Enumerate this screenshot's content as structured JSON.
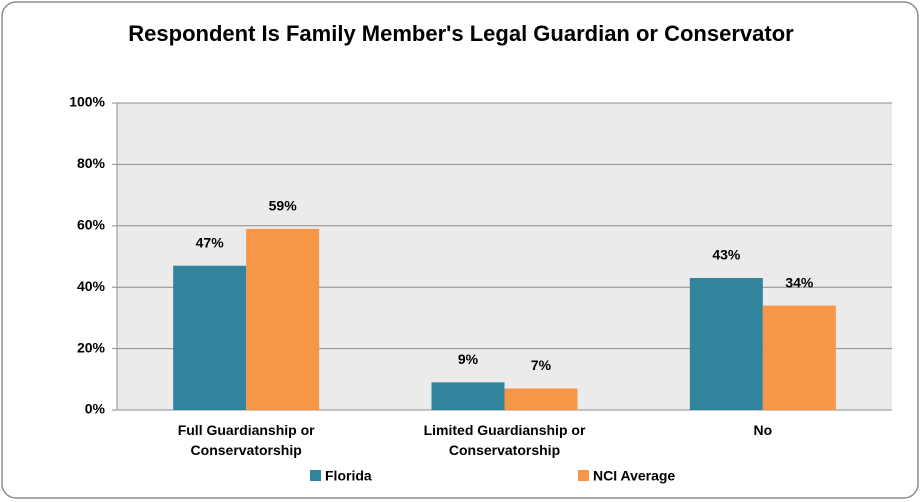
{
  "chart_data": {
    "type": "bar",
    "title": "Respondent Is Family Member's Legal Guardian or Conservator",
    "categories": [
      "Full Guardianship or Conservatorship",
      "Limited Guardianship or Conservatorship",
      "No"
    ],
    "series": [
      {
        "name": "Florida",
        "color": "#31849b",
        "values": [
          47,
          9,
          43
        ],
        "value_labels": [
          "47%",
          "9%",
          "43%"
        ]
      },
      {
        "name": "NCI Average",
        "color": "#f79646",
        "values": [
          59,
          7,
          34
        ],
        "value_labels": [
          "59%",
          "7%",
          "34%"
        ]
      }
    ],
    "ylim": [
      0,
      100
    ],
    "yticks": [
      {
        "value": 0,
        "label": "0%"
      },
      {
        "value": 20,
        "label": "20%"
      },
      {
        "value": 40,
        "label": "40%"
      },
      {
        "value": 60,
        "label": "60%"
      },
      {
        "value": 80,
        "label": "80%"
      },
      {
        "value": 100,
        "label": "100%"
      }
    ],
    "grid": true,
    "legend": "bottom"
  }
}
